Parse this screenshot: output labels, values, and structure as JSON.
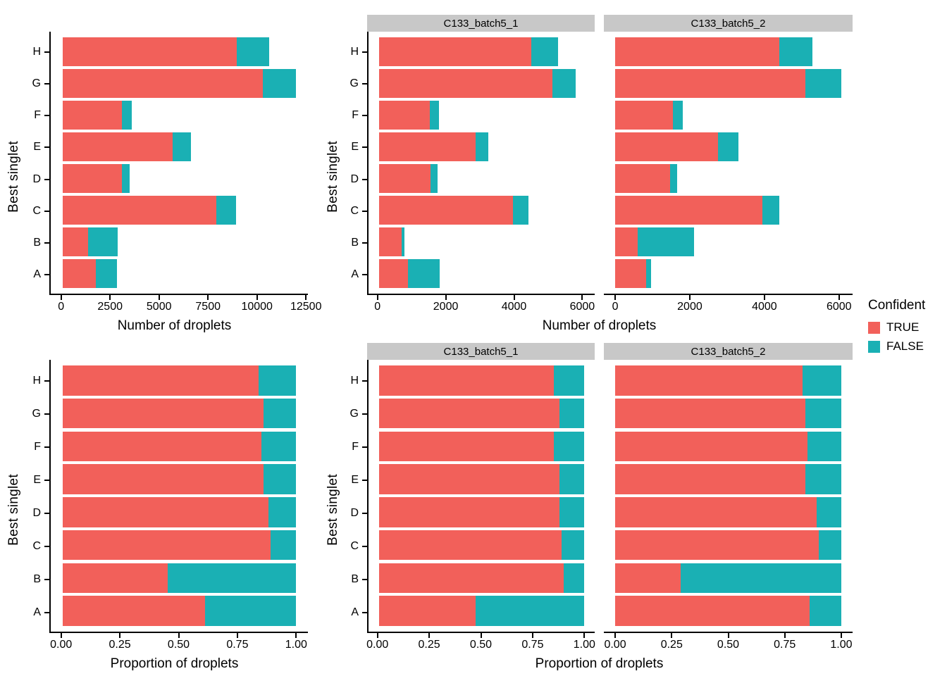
{
  "legend": {
    "title": "Confident",
    "items": [
      {
        "label": "TRUE",
        "color": "#F2605A"
      },
      {
        "label": "FALSE",
        "color": "#1AB0B4"
      }
    ]
  },
  "colors": {
    "true_fill": "#F2605A",
    "false_fill": "#1AB0B4",
    "strip_background": "#C8C8C8",
    "axis": "#000000"
  },
  "chart_data": [
    {
      "type": "bar",
      "orientation": "horizontal",
      "stacked": true,
      "grid": false,
      "title": "",
      "categories": [
        "A",
        "B",
        "C",
        "D",
        "E",
        "F",
        "G",
        "H"
      ],
      "series": [
        {
          "name": "TRUE",
          "values": [
            1700,
            1300,
            7900,
            3050,
            5650,
            3050,
            10300,
            8950
          ]
        },
        {
          "name": "FALSE",
          "values": [
            1100,
            1550,
            1000,
            400,
            950,
            500,
            1700,
            1650
          ]
        }
      ],
      "xlabel": "Number of droplets",
      "ylabel": "Best singlet",
      "xlim": [
        0,
        12500
      ],
      "x_ticks": [
        0,
        2500,
        5000,
        7500,
        10000,
        12500
      ],
      "x_tick_labels": [
        "0",
        "2500",
        "5000",
        "7500",
        "10000",
        "12500"
      ],
      "x_scale_max": 12000
    },
    {
      "type": "bar",
      "orientation": "horizontal",
      "stacked": true,
      "grid": false,
      "title": "C133_batch5_1",
      "categories": [
        "A",
        "B",
        "C",
        "D",
        "E",
        "F",
        "G",
        "H"
      ],
      "series": [
        {
          "name": "TRUE",
          "values": [
            850,
            680,
            3950,
            1530,
            2850,
            1500,
            5120,
            4500
          ]
        },
        {
          "name": "FALSE",
          "values": [
            950,
            70,
            470,
            200,
            370,
            280,
            680,
            780
          ]
        }
      ],
      "xlabel": "Number of droplets",
      "ylabel": "Best singlet",
      "xlim": [
        0,
        6000
      ],
      "x_ticks": [
        0,
        2000,
        4000,
        6000
      ],
      "x_tick_labels": [
        "0",
        "2000",
        "4000",
        "6000"
      ],
      "x_scale_max": 6060
    },
    {
      "type": "bar",
      "orientation": "horizontal",
      "stacked": true,
      "grid": false,
      "title": "C133_batch5_2",
      "categories": [
        "A",
        "B",
        "C",
        "D",
        "E",
        "F",
        "G",
        "H"
      ],
      "series": [
        {
          "name": "TRUE",
          "values": [
            830,
            600,
            3950,
            1480,
            2750,
            1550,
            5100,
            4400
          ]
        },
        {
          "name": "FALSE",
          "values": [
            130,
            1510,
            450,
            190,
            550,
            260,
            960,
            880
          ]
        }
      ],
      "xlabel": "Number of droplets",
      "ylabel": "Best singlet",
      "xlim": [
        0,
        6000
      ],
      "x_ticks": [
        0,
        2000,
        4000,
        6000
      ],
      "x_tick_labels": [
        "0",
        "2000",
        "4000",
        "6000"
      ],
      "x_scale_max": 6060
    },
    {
      "type": "bar",
      "orientation": "horizontal",
      "stacked": true,
      "grid": false,
      "title": "",
      "categories": [
        "A",
        "B",
        "C",
        "D",
        "E",
        "F",
        "G",
        "H"
      ],
      "series": [
        {
          "name": "TRUE",
          "values": [
            0.61,
            0.45,
            0.89,
            0.88,
            0.86,
            0.85,
            0.86,
            0.84
          ]
        },
        {
          "name": "FALSE",
          "values": [
            0.39,
            0.55,
            0.11,
            0.12,
            0.14,
            0.15,
            0.14,
            0.16
          ]
        }
      ],
      "xlabel": "Proportion of droplets",
      "ylabel": "Best singlet",
      "xlim": [
        0,
        1
      ],
      "x_ticks": [
        0,
        0.25,
        0.5,
        0.75,
        1
      ],
      "x_tick_labels": [
        "0.00",
        "0.25",
        "0.50",
        "0.75",
        "1.00"
      ],
      "x_scale_max": 1
    },
    {
      "type": "bar",
      "orientation": "horizontal",
      "stacked": true,
      "grid": false,
      "title": "C133_batch5_1",
      "categories": [
        "A",
        "B",
        "C",
        "D",
        "E",
        "F",
        "G",
        "H"
      ],
      "series": [
        {
          "name": "TRUE",
          "values": [
            0.47,
            0.9,
            0.89,
            0.88,
            0.88,
            0.85,
            0.88,
            0.85
          ]
        },
        {
          "name": "FALSE",
          "values": [
            0.53,
            0.1,
            0.11,
            0.12,
            0.12,
            0.15,
            0.12,
            0.15
          ]
        }
      ],
      "xlabel": "Proportion of droplets",
      "ylabel": "Best singlet",
      "xlim": [
        0,
        1
      ],
      "x_ticks": [
        0,
        0.25,
        0.5,
        0.75,
        1
      ],
      "x_tick_labels": [
        "0.00",
        "0.25",
        "0.50",
        "0.75",
        "1.00"
      ],
      "x_scale_max": 1
    },
    {
      "type": "bar",
      "orientation": "horizontal",
      "stacked": true,
      "grid": false,
      "title": "C133_batch5_2",
      "categories": [
        "A",
        "B",
        "C",
        "D",
        "E",
        "F",
        "G",
        "H"
      ],
      "series": [
        {
          "name": "TRUE",
          "values": [
            0.86,
            0.29,
            0.9,
            0.89,
            0.84,
            0.85,
            0.84,
            0.83
          ]
        },
        {
          "name": "FALSE",
          "values": [
            0.14,
            0.71,
            0.1,
            0.11,
            0.16,
            0.15,
            0.16,
            0.17
          ]
        }
      ],
      "xlabel": "Proportion of droplets",
      "ylabel": "Best singlet",
      "xlim": [
        0,
        1
      ],
      "x_ticks": [
        0,
        0.25,
        0.5,
        0.75,
        1
      ],
      "x_tick_labels": [
        "0.00",
        "0.25",
        "0.50",
        "0.75",
        "1.00"
      ],
      "x_scale_max": 1
    }
  ]
}
